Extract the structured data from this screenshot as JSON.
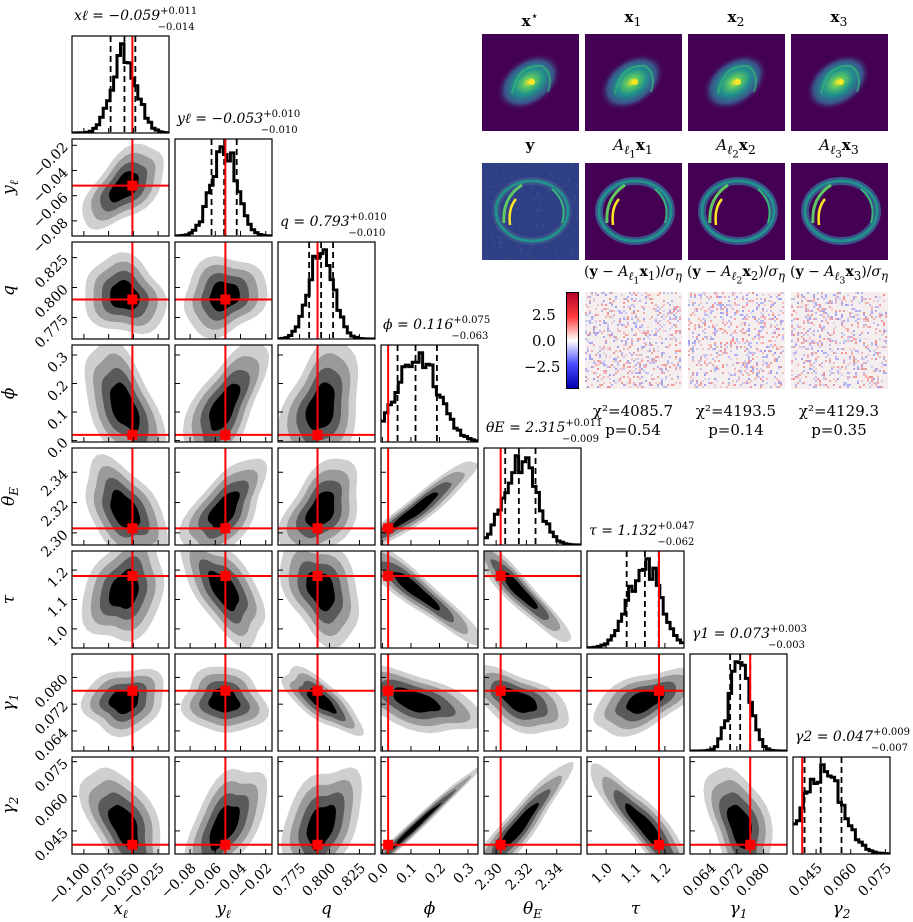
{
  "params": [
    {
      "key": "x_l",
      "label_html": "x<sub>ℓ</sub>",
      "truth": -0.051,
      "median": -0.059,
      "lo": -0.073,
      "hi": -0.048,
      "title": "x_ℓ = −0.059 +0.011 −0.014",
      "title_value": "−0.059",
      "title_plus": "+0.011",
      "title_minus": "−0.014",
      "range": [
        -0.112,
        -0.014
      ],
      "ticks": [
        -0.1,
        -0.075,
        -0.05,
        -0.025
      ],
      "tick_labels": [
        "−0.100",
        "−0.075",
        "−0.050",
        "−0.025"
      ]
    },
    {
      "key": "y_l",
      "label_html": "y<sub>ℓ</sub>",
      "truth": -0.052,
      "median": -0.053,
      "lo": -0.063,
      "hi": -0.043,
      "title": "y_ℓ = −0.053 +0.010 −0.010",
      "title_value": "−0.053",
      "title_plus": "+0.010",
      "title_minus": "−0.010",
      "range": [
        -0.092,
        -0.015
      ],
      "ticks": [
        -0.08,
        -0.06,
        -0.04,
        -0.02
      ],
      "tick_labels": [
        "−0.08",
        "−0.06",
        "−0.04",
        "−0.02"
      ]
    },
    {
      "key": "q",
      "label_html": "q",
      "truth": 0.79,
      "median": 0.793,
      "lo": 0.783,
      "hi": 0.803,
      "title": "q = 0.793 +0.010 −0.010",
      "title_value": "0.793",
      "title_plus": "+0.010",
      "title_minus": "−0.010",
      "range": [
        0.757,
        0.838
      ],
      "ticks": [
        0.775,
        0.8,
        0.825
      ],
      "tick_labels": [
        "0.775",
        "0.800",
        "0.825"
      ]
    },
    {
      "key": "phi",
      "label_html": "ϕ",
      "truth": 0.02,
      "median": 0.116,
      "lo": 0.053,
      "hi": 0.191,
      "title": "ϕ = 0.116 +0.075 −0.063",
      "title_value": "0.116",
      "title_plus": "+0.075",
      "title_minus": "−0.063",
      "range": [
        -0.005,
        0.335
      ],
      "ticks": [
        0.0,
        0.1,
        0.2,
        0.3
      ],
      "tick_labels": [
        "0.0",
        "0.1",
        "0.2",
        "0.3"
      ]
    },
    {
      "key": "theta_E",
      "label_html": "θ<sub>E</sub>",
      "truth": 2.303,
      "median": 2.315,
      "lo": 2.306,
      "hi": 2.326,
      "title": "θ_E = 2.315 +0.011 −0.009",
      "title_value": "2.315",
      "title_plus": "+0.011",
      "title_minus": "−0.009",
      "range": [
        2.292,
        2.356
      ],
      "ticks": [
        2.3,
        2.32,
        2.34
      ],
      "tick_labels": [
        "2.30",
        "2.32",
        "2.34"
      ]
    },
    {
      "key": "tau",
      "label_html": "τ",
      "truth": 1.18,
      "median": 1.132,
      "lo": 1.07,
      "hi": 1.179,
      "title": "τ = 1.132 +0.047 −0.062",
      "title_value": "1.132",
      "title_plus": "+0.047",
      "title_minus": "−0.062",
      "range": [
        0.935,
        1.265
      ],
      "ticks": [
        1.0,
        1.1,
        1.2
      ],
      "tick_labels": [
        "1.0",
        "1.1",
        "1.2"
      ]
    },
    {
      "key": "gamma_1",
      "label_html": "γ<sub>1</sub>",
      "truth": 0.076,
      "median": 0.073,
      "lo": 0.07,
      "hi": 0.076,
      "title": "γ_1 = 0.073 +0.003 −0.003",
      "title_value": "0.073",
      "title_plus": "+0.003",
      "title_minus": "−0.003",
      "range": [
        0.058,
        0.087
      ],
      "ticks": [
        0.064,
        0.072,
        0.08
      ],
      "tick_labels": [
        "0.064",
        "0.072",
        "0.080"
      ]
    },
    {
      "key": "gamma_2",
      "label_html": "γ<sub>2</sub>",
      "truth": 0.039,
      "median": 0.047,
      "lo": 0.04,
      "hi": 0.056,
      "title": "γ_2 = 0.047 +0.009 −0.007",
      "title_value": "0.047",
      "title_plus": "+0.009",
      "title_minus": "−0.007",
      "range": [
        0.035,
        0.077
      ],
      "ticks": [
        0.045,
        0.06,
        0.075
      ],
      "tick_labels": [
        "0.045",
        "0.060",
        "0.075"
      ]
    }
  ],
  "correlations": [
    [
      1.0,
      0.55,
      -0.15,
      -0.55,
      -0.45,
      0.25,
      0.15,
      -0.55
    ],
    [
      0.55,
      1.0,
      0.15,
      0.65,
      0.6,
      -0.6,
      -0.1,
      0.6
    ],
    [
      -0.15,
      0.15,
      1.0,
      0.35,
      0.45,
      -0.35,
      -0.75,
      0.4
    ],
    [
      -0.55,
      0.65,
      0.35,
      1.0,
      0.95,
      -0.93,
      -0.55,
      0.99
    ],
    [
      -0.45,
      0.6,
      0.45,
      0.95,
      1.0,
      -0.93,
      -0.55,
      0.92
    ],
    [
      0.25,
      -0.6,
      -0.35,
      -0.93,
      -0.93,
      1.0,
      0.55,
      -0.9
    ],
    [
      0.15,
      -0.1,
      -0.75,
      -0.55,
      -0.55,
      0.55,
      1.0,
      -0.45
    ],
    [
      -0.55,
      0.6,
      0.4,
      0.99,
      0.92,
      -0.9,
      -0.45,
      1.0
    ]
  ],
  "image_panels": {
    "row1_titles": [
      "x★",
      "x₁",
      "x₂",
      "x₃"
    ],
    "row2_titles": [
      "y",
      "Aℓ₁x₁",
      "Aℓ₂x₂",
      "Aℓ₃x₃"
    ],
    "row3_titles": [
      "(y − Aℓ₁x₁)/σ_η",
      "(y − Aℓ₂x₂)/σ_η",
      "(y − Aℓ₃x₃)/σ_η"
    ],
    "colorbar_ticks": [
      "2.5",
      "0.0",
      "−2.5"
    ],
    "stats": [
      {
        "chi2": "χ²=4085.7",
        "p": "p=0.54"
      },
      {
        "chi2": "χ²=4193.5",
        "p": "p=0.14"
      },
      {
        "chi2": "χ²=4129.3",
        "p": "p=0.35"
      }
    ]
  },
  "colors": {
    "truth": "#ff0000",
    "contour_levels": [
      "#000000",
      "#5a5a5a",
      "#9a9a9a",
      "#cfcfcf"
    ],
    "hist": "#000000",
    "viridis_bg": "#440154"
  },
  "chart_data": {
    "type": "corner",
    "parameters": [
      "x_ℓ",
      "y_ℓ",
      "q",
      "ϕ",
      "θ_E",
      "τ",
      "γ_1",
      "γ_2"
    ],
    "medians": [
      -0.059,
      -0.053,
      0.793,
      0.116,
      2.315,
      1.132,
      0.073,
      0.047
    ],
    "plus_errors": [
      0.011,
      0.01,
      0.01,
      0.075,
      0.011,
      0.047,
      0.003,
      0.009
    ],
    "minus_errors": [
      0.014,
      0.01,
      0.01,
      0.063,
      0.009,
      0.062,
      0.003,
      0.007
    ],
    "truth_values": [
      -0.051,
      -0.052,
      0.79,
      0.02,
      2.303,
      1.18,
      0.076,
      0.039
    ],
    "quantile_lines": [
      0.16,
      0.5,
      0.84
    ]
  }
}
